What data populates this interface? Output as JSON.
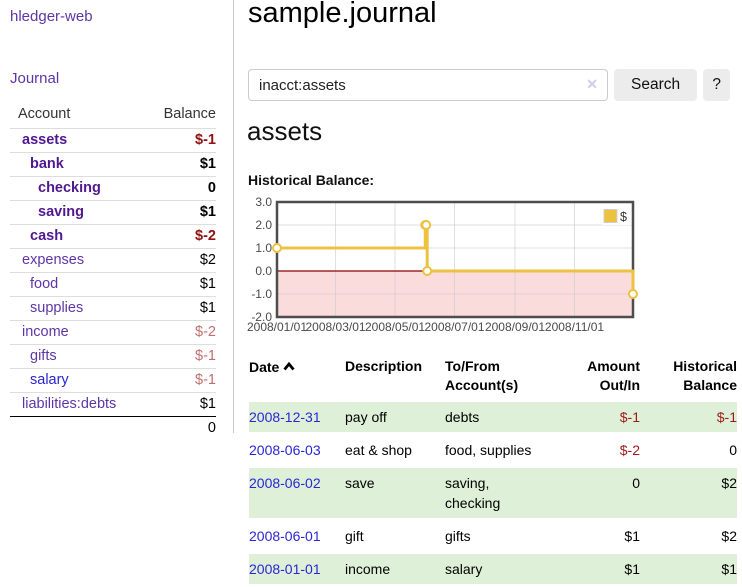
{
  "sidebar": {
    "app_title": "hledger-web",
    "journal_link": "Journal",
    "table": {
      "account_header": "Account",
      "balance_header": "Balance",
      "total": "0"
    },
    "accounts": [
      {
        "name": "assets",
        "balance": "$-1"
      },
      {
        "name": "bank",
        "balance": "$1"
      },
      {
        "name": "checking",
        "balance": "0"
      },
      {
        "name": "saving",
        "balance": "$1"
      },
      {
        "name": "cash",
        "balance": "$-2"
      },
      {
        "name": "expenses",
        "balance": "$2"
      },
      {
        "name": "food",
        "balance": "$1"
      },
      {
        "name": "supplies",
        "balance": "$1"
      },
      {
        "name": "income",
        "balance": "$-2"
      },
      {
        "name": "gifts",
        "balance": "$-1"
      },
      {
        "name": "salary",
        "balance": "$-1"
      },
      {
        "name": "liabilities:debts",
        "balance": "$1"
      }
    ]
  },
  "header": {
    "title": "sample.journal"
  },
  "search": {
    "value": "inacct:assets",
    "clear_icon": "✕",
    "button_label": "Search",
    "help_label": "?"
  },
  "account_page": {
    "heading": "assets",
    "chart_label": "Historical Balance:"
  },
  "chart_data": {
    "type": "line",
    "step": true,
    "title": "Historical Balance",
    "series": [
      {
        "name": "$",
        "color": "#edc240",
        "points": [
          [
            "2008-01-01",
            1
          ],
          [
            "2008-06-01",
            2
          ],
          [
            "2008-06-02",
            2
          ],
          [
            "2008-06-03",
            0
          ],
          [
            "2008-12-31",
            -1
          ]
        ]
      }
    ],
    "xlim": [
      "2008-01-01",
      "2008-12-31"
    ],
    "ylim": [
      -2,
      3
    ],
    "x_ticks": [
      "2008/01/01",
      "2008/03/01",
      "2008/05/01",
      "2008/07/01",
      "2008/09/01",
      "2008/11/01"
    ],
    "y_ticks": [
      "3.0",
      "2.0",
      "1.0",
      "0.0",
      "-1.0",
      "-2.0"
    ],
    "legend": {
      "label": "$",
      "position": "top-right"
    },
    "grid": true,
    "negative_region_color": "#fbdcdc",
    "zero_line_color": "#8b0000"
  },
  "register": {
    "headers": {
      "date": "Date",
      "description": "Description",
      "account1": "To/From",
      "account2": "Account(s)",
      "amount1": "Amount",
      "amount2": "Out/In",
      "balance1": "Historical",
      "balance2": "Balance"
    },
    "rows": [
      {
        "date": "2008-12-31",
        "description": "pay off",
        "accounts": "debts",
        "amount": "$-1",
        "balance": "$-1"
      },
      {
        "date": "2008-06-03",
        "description": "eat & shop",
        "accounts": "food, supplies",
        "amount": "$-2",
        "balance": "0"
      },
      {
        "date": "2008-06-02",
        "description": "save",
        "accounts": "saving,\nchecking",
        "amount": "0",
        "balance": "$2"
      },
      {
        "date": "2008-06-01",
        "description": "gift",
        "accounts": "gifts",
        "amount": "$1",
        "balance": "$2"
      },
      {
        "date": "2008-01-01",
        "description": "income",
        "accounts": "salary",
        "amount": "$1",
        "balance": "$1"
      }
    ]
  }
}
